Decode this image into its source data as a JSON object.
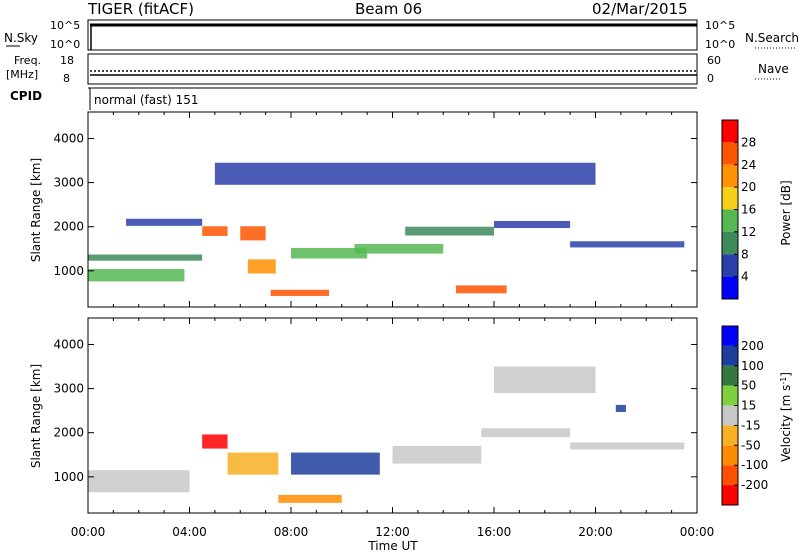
{
  "header": {
    "radar": "TIGER (fitACF)",
    "beam": "Beam 06",
    "date": "02/Mar/2015"
  },
  "panels": {
    "nsky": {
      "left_label": "N.Sky",
      "right_label": "N.Search",
      "left_ticks": [
        "10^5",
        "10^0"
      ],
      "right_ticks": [
        "10^5",
        "10^0"
      ]
    },
    "freq": {
      "left_label_1": "Freq.",
      "left_label_2": "[MHz]",
      "right_label": "Nave",
      "left_ticks": [
        "18",
        "8"
      ],
      "right_ticks": [
        "60",
        "0"
      ]
    },
    "cpid": {
      "label": "CPID",
      "text": "normal (fast) 151"
    }
  },
  "colors": {
    "power": [
      "#0000ff",
      "#2a3fa8",
      "#3d8a5a",
      "#56b852",
      "#f5cf18",
      "#ff9000",
      "#ff5500",
      "#ff0000"
    ],
    "velocity": [
      "#0000ff",
      "#1f3e9c",
      "#33793f",
      "#7fd040",
      "#c8c8c8",
      "#f7b024",
      "#ff8c00",
      "#ff5000",
      "#ff0000"
    ]
  },
  "chart_data": [
    {
      "type": "heatmap",
      "title": "",
      "xlabel": "Time UT",
      "ylabel": "Slant Range [km]",
      "x_ticks": [
        "00:00",
        "04:00",
        "08:00",
        "12:00",
        "16:00",
        "20:00",
        "00:00"
      ],
      "y_ticks": [
        "1000",
        "2000",
        "3000",
        "4000"
      ],
      "ylim": [
        180,
        4600
      ],
      "colorbar": {
        "label": "Power [dB]",
        "ticks": [
          "4",
          "8",
          "12",
          "16",
          "20",
          "24",
          "28"
        ],
        "range": [
          0,
          30
        ]
      },
      "features": [
        {
          "t0": 0.0,
          "t1": 3.8,
          "r": 900,
          "w": 140,
          "v": 14
        },
        {
          "t0": 0.0,
          "t1": 4.5,
          "r": 1300,
          "w": 70,
          "v": 9
        },
        {
          "t0": 1.5,
          "t1": 4.5,
          "r": 2100,
          "w": 80,
          "v": 6
        },
        {
          "t0": 4.5,
          "t1": 5.5,
          "r": 1900,
          "w": 110,
          "v": 24
        },
        {
          "t0": 6.0,
          "t1": 7.0,
          "r": 1850,
          "w": 160,
          "v": 27
        },
        {
          "t0": 6.3,
          "t1": 7.4,
          "r": 1100,
          "w": 160,
          "v": 22
        },
        {
          "t0": 7.2,
          "t1": 9.5,
          "r": 500,
          "w": 70,
          "v": 24
        },
        {
          "t0": 8.0,
          "t1": 11.0,
          "r": 1400,
          "w": 120,
          "v": 15
        },
        {
          "t0": 10.5,
          "t1": 14.0,
          "r": 1500,
          "w": 110,
          "v": 12
        },
        {
          "t0": 12.5,
          "t1": 16.0,
          "r": 1900,
          "w": 100,
          "v": 10
        },
        {
          "t0": 14.5,
          "t1": 16.5,
          "r": 580,
          "w": 90,
          "v": 26
        },
        {
          "t0": 16.0,
          "t1": 19.0,
          "r": 2050,
          "w": 80,
          "v": 6
        },
        {
          "t0": 19.0,
          "t1": 23.5,
          "r": 1600,
          "w": 70,
          "v": 7
        },
        {
          "t0": 5.0,
          "t1": 20.0,
          "r": 3200,
          "w": 250,
          "v": 5
        }
      ]
    },
    {
      "type": "heatmap",
      "title": "",
      "xlabel": "Time UT",
      "ylabel": "Slant Range [km]",
      "x_ticks": [
        "00:00",
        "04:00",
        "08:00",
        "12:00",
        "16:00",
        "20:00",
        "00:00"
      ],
      "y_ticks": [
        "1000",
        "2000",
        "3000",
        "4000"
      ],
      "ylim": [
        180,
        4600
      ],
      "colorbar": {
        "label": "Velocity [m s^-1]",
        "ticks": [
          "200",
          "100",
          "50",
          "15",
          "-15",
          "-50",
          "-100",
          "-200"
        ],
        "range": [
          -250,
          250
        ]
      },
      "features": [
        {
          "t0": 0.0,
          "t1": 4.0,
          "r": 900,
          "w": 250,
          "v": 0
        },
        {
          "t0": 4.5,
          "t1": 5.5,
          "r": 1800,
          "w": 160,
          "v": -220
        },
        {
          "t0": 5.5,
          "t1": 7.5,
          "r": 1300,
          "w": 250,
          "v": -70
        },
        {
          "t0": 7.5,
          "t1": 10.0,
          "r": 500,
          "w": 90,
          "v": -100
        },
        {
          "t0": 8.0,
          "t1": 11.5,
          "r": 1300,
          "w": 250,
          "v": 180
        },
        {
          "t0": 12.0,
          "t1": 15.5,
          "r": 1500,
          "w": 200,
          "v": 0
        },
        {
          "t0": 15.5,
          "t1": 19.0,
          "r": 2000,
          "w": 100,
          "v": 0
        },
        {
          "t0": 19.0,
          "t1": 23.5,
          "r": 1700,
          "w": 80,
          "v": 30
        },
        {
          "t0": 20.8,
          "t1": 21.2,
          "r": 2550,
          "w": 80,
          "v": 190
        },
        {
          "t0": 16.0,
          "t1": 20.0,
          "r": 3200,
          "w": 300,
          "v": -20
        }
      ]
    }
  ]
}
